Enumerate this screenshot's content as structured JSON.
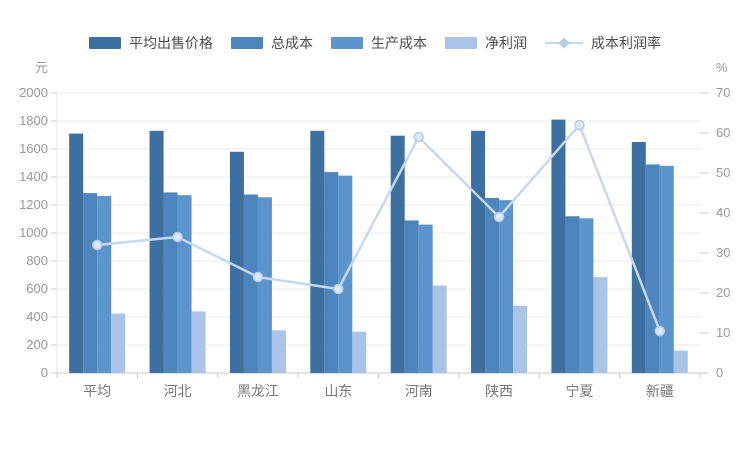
{
  "chart_data": {
    "type": "bar",
    "title": "",
    "legend_position": "top",
    "grid": true,
    "categories": [
      "平均",
      "河北",
      "黑龙江",
      "山东",
      "河南",
      "陕西",
      "宁夏",
      "新疆"
    ],
    "series": [
      {
        "name": "平均出售价格",
        "type": "bar",
        "axis": "left",
        "color": "#3c70a1",
        "values": [
          1710,
          1730,
          1580,
          1730,
          1695,
          1730,
          1810,
          1650
        ]
      },
      {
        "name": "总成本",
        "type": "bar",
        "axis": "left",
        "color": "#4d85bc",
        "values": [
          1285,
          1290,
          1275,
          1435,
          1090,
          1250,
          1120,
          1490
        ]
      },
      {
        "name": "生产成本",
        "type": "bar",
        "axis": "left",
        "color": "#5c94ce",
        "values": [
          1265,
          1270,
          1255,
          1410,
          1060,
          1235,
          1105,
          1480
        ]
      },
      {
        "name": "净利润",
        "type": "bar",
        "axis": "left",
        "color": "#a9c4e6",
        "values": [
          425,
          440,
          305,
          295,
          625,
          480,
          685,
          160
        ]
      },
      {
        "name": "成本利润率",
        "type": "line",
        "axis": "right",
        "color": "#c6d8ee",
        "marker_fill": "#dce8f5",
        "marker_stroke": "#b7cdea",
        "values": [
          32,
          34,
          24,
          21,
          59,
          39,
          62,
          10.5
        ]
      }
    ],
    "left_axis": {
      "unit": "元",
      "min": 0,
      "max": 2000,
      "step": 200,
      "ticks": [
        0,
        200,
        400,
        600,
        800,
        1000,
        1200,
        1400,
        1600,
        1800,
        2000
      ]
    },
    "right_axis": {
      "unit": "%",
      "min": 0,
      "max": 70,
      "step": 10,
      "ticks": [
        0,
        10,
        20,
        30,
        40,
        50,
        60,
        70
      ]
    },
    "style": {
      "grid_line_color": "#e8e8e8",
      "axis_line_color": "#c9c9c9",
      "tick_mark_color": "#cccccc",
      "axis_text_color": "#999999",
      "x_label_color": "#777777",
      "legend_text_color": "#4c4c4c"
    }
  }
}
